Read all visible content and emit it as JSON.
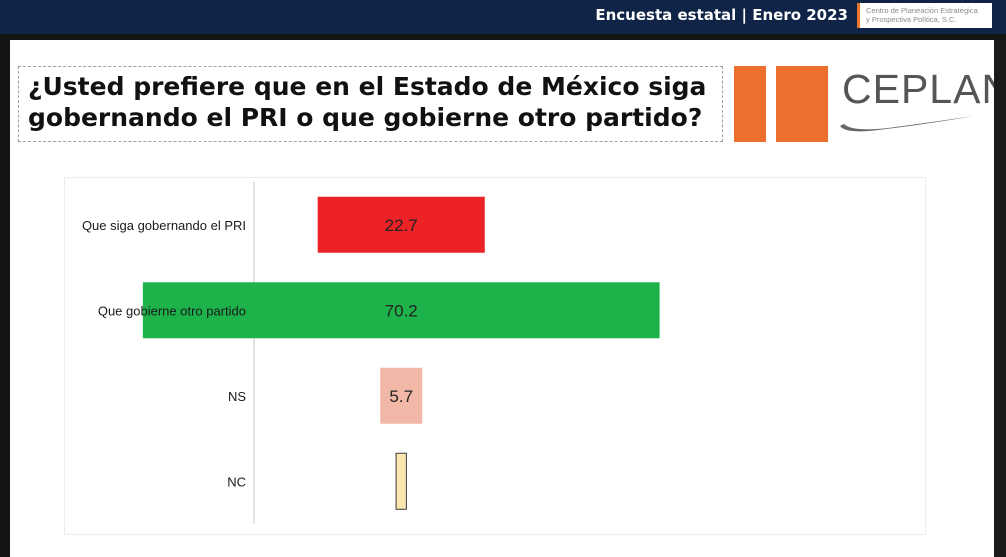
{
  "header": {
    "survey_title": "Encuesta estatal | Enero 2023",
    "org_line1": "Centro de Planeación Estratégica",
    "org_line2": "y Prospectiva Política, S.C."
  },
  "question": "¿Usted prefiere que en el Estado de México siga gobernando el PRI o que gobierne otro partido?",
  "logo": {
    "text": "CEPLAN",
    "color": "#ee6f2d"
  },
  "chart_data": {
    "type": "bar",
    "orientation": "horizontal",
    "title": "",
    "xlabel": "",
    "ylabel": "",
    "categories": [
      "Que siga gobernando el PRI",
      "Que gobierne otro partido",
      "NS",
      "NC"
    ],
    "values": [
      22.7,
      70.2,
      5.7,
      1.4
    ],
    "value_labels": [
      "22.7",
      "70.2",
      "5.7",
      ""
    ],
    "colors": [
      "#ec2227",
      "#1db34a",
      "#f1b8a7",
      "#fbe7b0"
    ],
    "xlim": [
      -20,
      70.2
    ],
    "grid": false,
    "legend": "none"
  }
}
